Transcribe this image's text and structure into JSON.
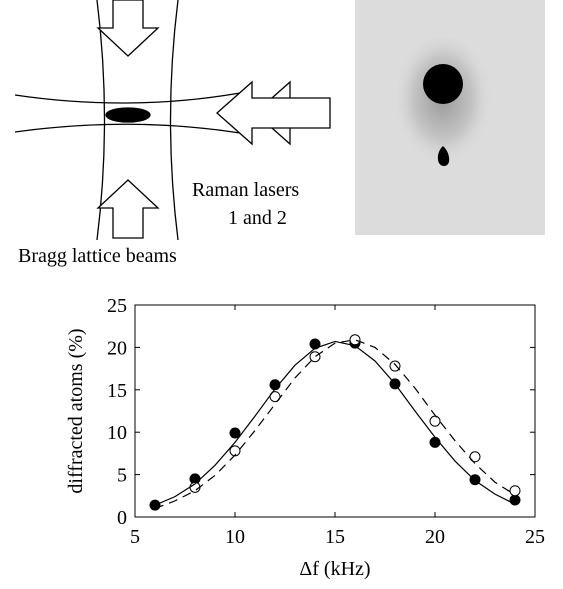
{
  "diagram": {
    "labels": [
      "Raman lasers",
      "1 and 2",
      "Bragg lattice beams"
    ]
  },
  "chart_data": {
    "type": "scatter",
    "xlabel": "Δf (kHz)",
    "ylabel": "diffracted atoms (%)",
    "xlim": [
      5,
      25
    ],
    "xticks": [
      5,
      10,
      15,
      20,
      25
    ],
    "ylim": [
      0,
      25
    ],
    "yticks": [
      0,
      5,
      10,
      15,
      20,
      25
    ],
    "series": [
      {
        "marker": "filled",
        "color": "#000000",
        "x": [
          6,
          8,
          10,
          12,
          14,
          16,
          18,
          20,
          22,
          24
        ],
        "values": [
          1.4,
          4.5,
          9.9,
          15.6,
          20.4,
          20.5,
          15.7,
          8.8,
          4.4,
          2.0
        ]
      },
      {
        "marker": "open",
        "color": "#000000",
        "x": [
          8,
          10,
          12,
          14,
          16,
          18,
          20,
          22,
          24
        ],
        "values": [
          3.5,
          7.8,
          14.2,
          18.9,
          20.9,
          17.8,
          11.3,
          7.1,
          3.1
        ]
      },
      {
        "line": "solid",
        "color": "#000000",
        "x": [
          6,
          7,
          8,
          9,
          10,
          11,
          12,
          13,
          14,
          15,
          16,
          17,
          18,
          19,
          20,
          21,
          22,
          23,
          24
        ],
        "values": [
          1.4,
          2.4,
          3.9,
          6.1,
          8.8,
          11.9,
          15.1,
          17.9,
          19.9,
          20.7,
          20.2,
          18.4,
          15.7,
          12.5,
          9.4,
          6.6,
          4.3,
          2.7,
          1.5
        ]
      },
      {
        "line": "dashed",
        "color": "#000000",
        "x": [
          6,
          7,
          8,
          9,
          10,
          11,
          12,
          13,
          14,
          15,
          16,
          17,
          18,
          19,
          20,
          21,
          22,
          23,
          24
        ],
        "values": [
          1.0,
          1.9,
          3.1,
          4.9,
          7.3,
          10.2,
          13.3,
          16.4,
          18.9,
          20.5,
          20.9,
          20.0,
          18.0,
          15.2,
          12.0,
          9.0,
          6.3,
          4.1,
          2.6
        ]
      }
    ]
  }
}
